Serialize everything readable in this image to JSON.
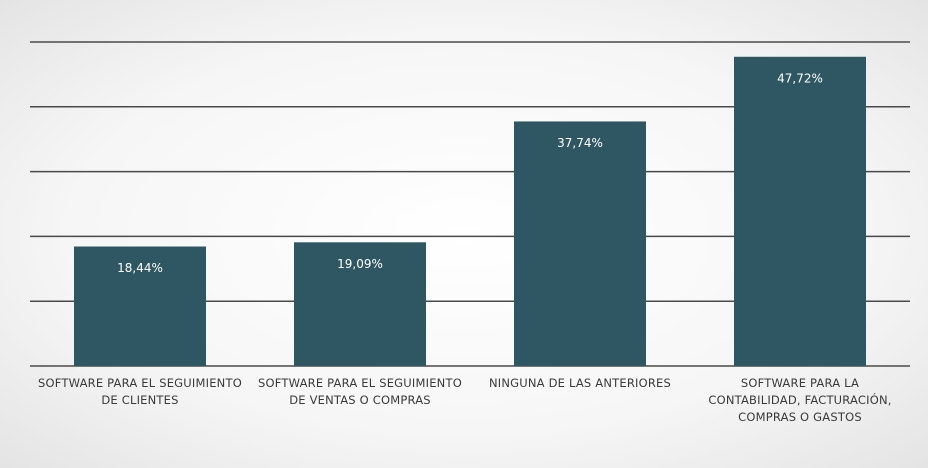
{
  "chart_data": {
    "type": "bar",
    "categories": [
      "SOFTWARE PARA EL SEGUIMIENTO DE CLIENTES",
      "SOFTWARE PARA EL SEGUIMIENTO DE VENTAS O COMPRAS",
      "NINGUNA DE LAS ANTERIORES",
      "SOFTWARE PARA LA CONTABILIDAD, FACTURACIÓN, COMPRAS O GASTOS"
    ],
    "values": [
      18.44,
      19.09,
      37.74,
      47.72
    ],
    "value_labels": [
      "18,44%",
      "19,09%",
      "37,74%",
      "47,72%"
    ],
    "color": "#2f5763",
    "ylim": [
      0,
      50
    ],
    "yticks": [
      0,
      10,
      20,
      30,
      40,
      50
    ],
    "grid": true
  }
}
